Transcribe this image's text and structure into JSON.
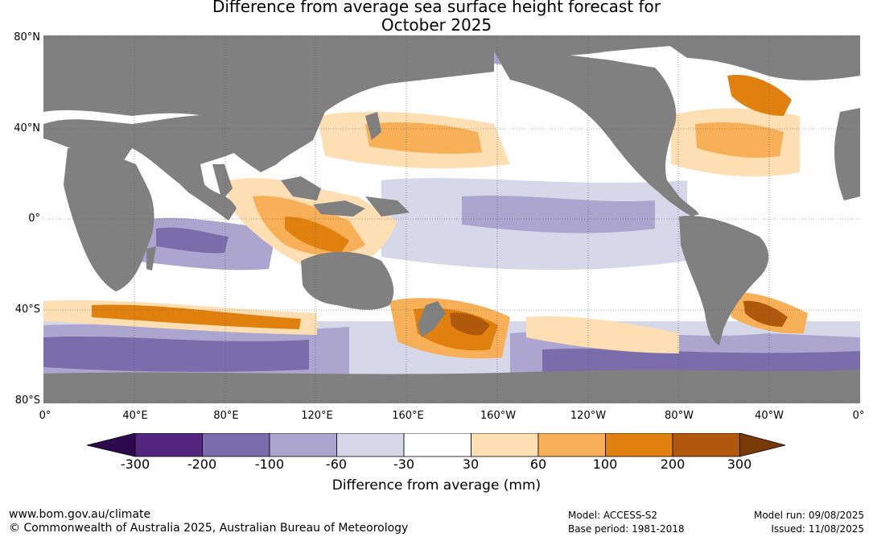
{
  "title_line1": "Difference from average sea surface height forecast for",
  "title_line2": "October 2025",
  "lat_labels": [
    "80°N",
    "40°N",
    "0°",
    "40°S",
    "80°S"
  ],
  "lon_labels": [
    "0°",
    "40°E",
    "80°E",
    "120°E",
    "160°E",
    "160°W",
    "120°W",
    "80°W",
    "40°W",
    "0°"
  ],
  "colorbar": {
    "ticks": [
      "-300",
      "-200",
      "-100",
      "-60",
      "-30",
      "30",
      "60",
      "100",
      "200",
      "300"
    ],
    "colors": [
      "#2d0a4e",
      "#54267f",
      "#7b6cab",
      "#aba5cf",
      "#d7d7ea",
      "#ffffff",
      "#fddfb3",
      "#f8b058",
      "#e0800f",
      "#b0580b",
      "#7a3a06"
    ],
    "label": "Difference from average (mm)"
  },
  "land_color": "#808080",
  "footer": {
    "url": "www.bom.gov.au/climate",
    "copyright": "© Commonwealth of Australia 2025, Australian Bureau of Meteorology",
    "model": "Model: ACCESS-S2",
    "base_period": "Base period: 1981-2018",
    "model_run": "Model run: 09/08/2025",
    "issued": "Issued: 11/08/2025"
  }
}
